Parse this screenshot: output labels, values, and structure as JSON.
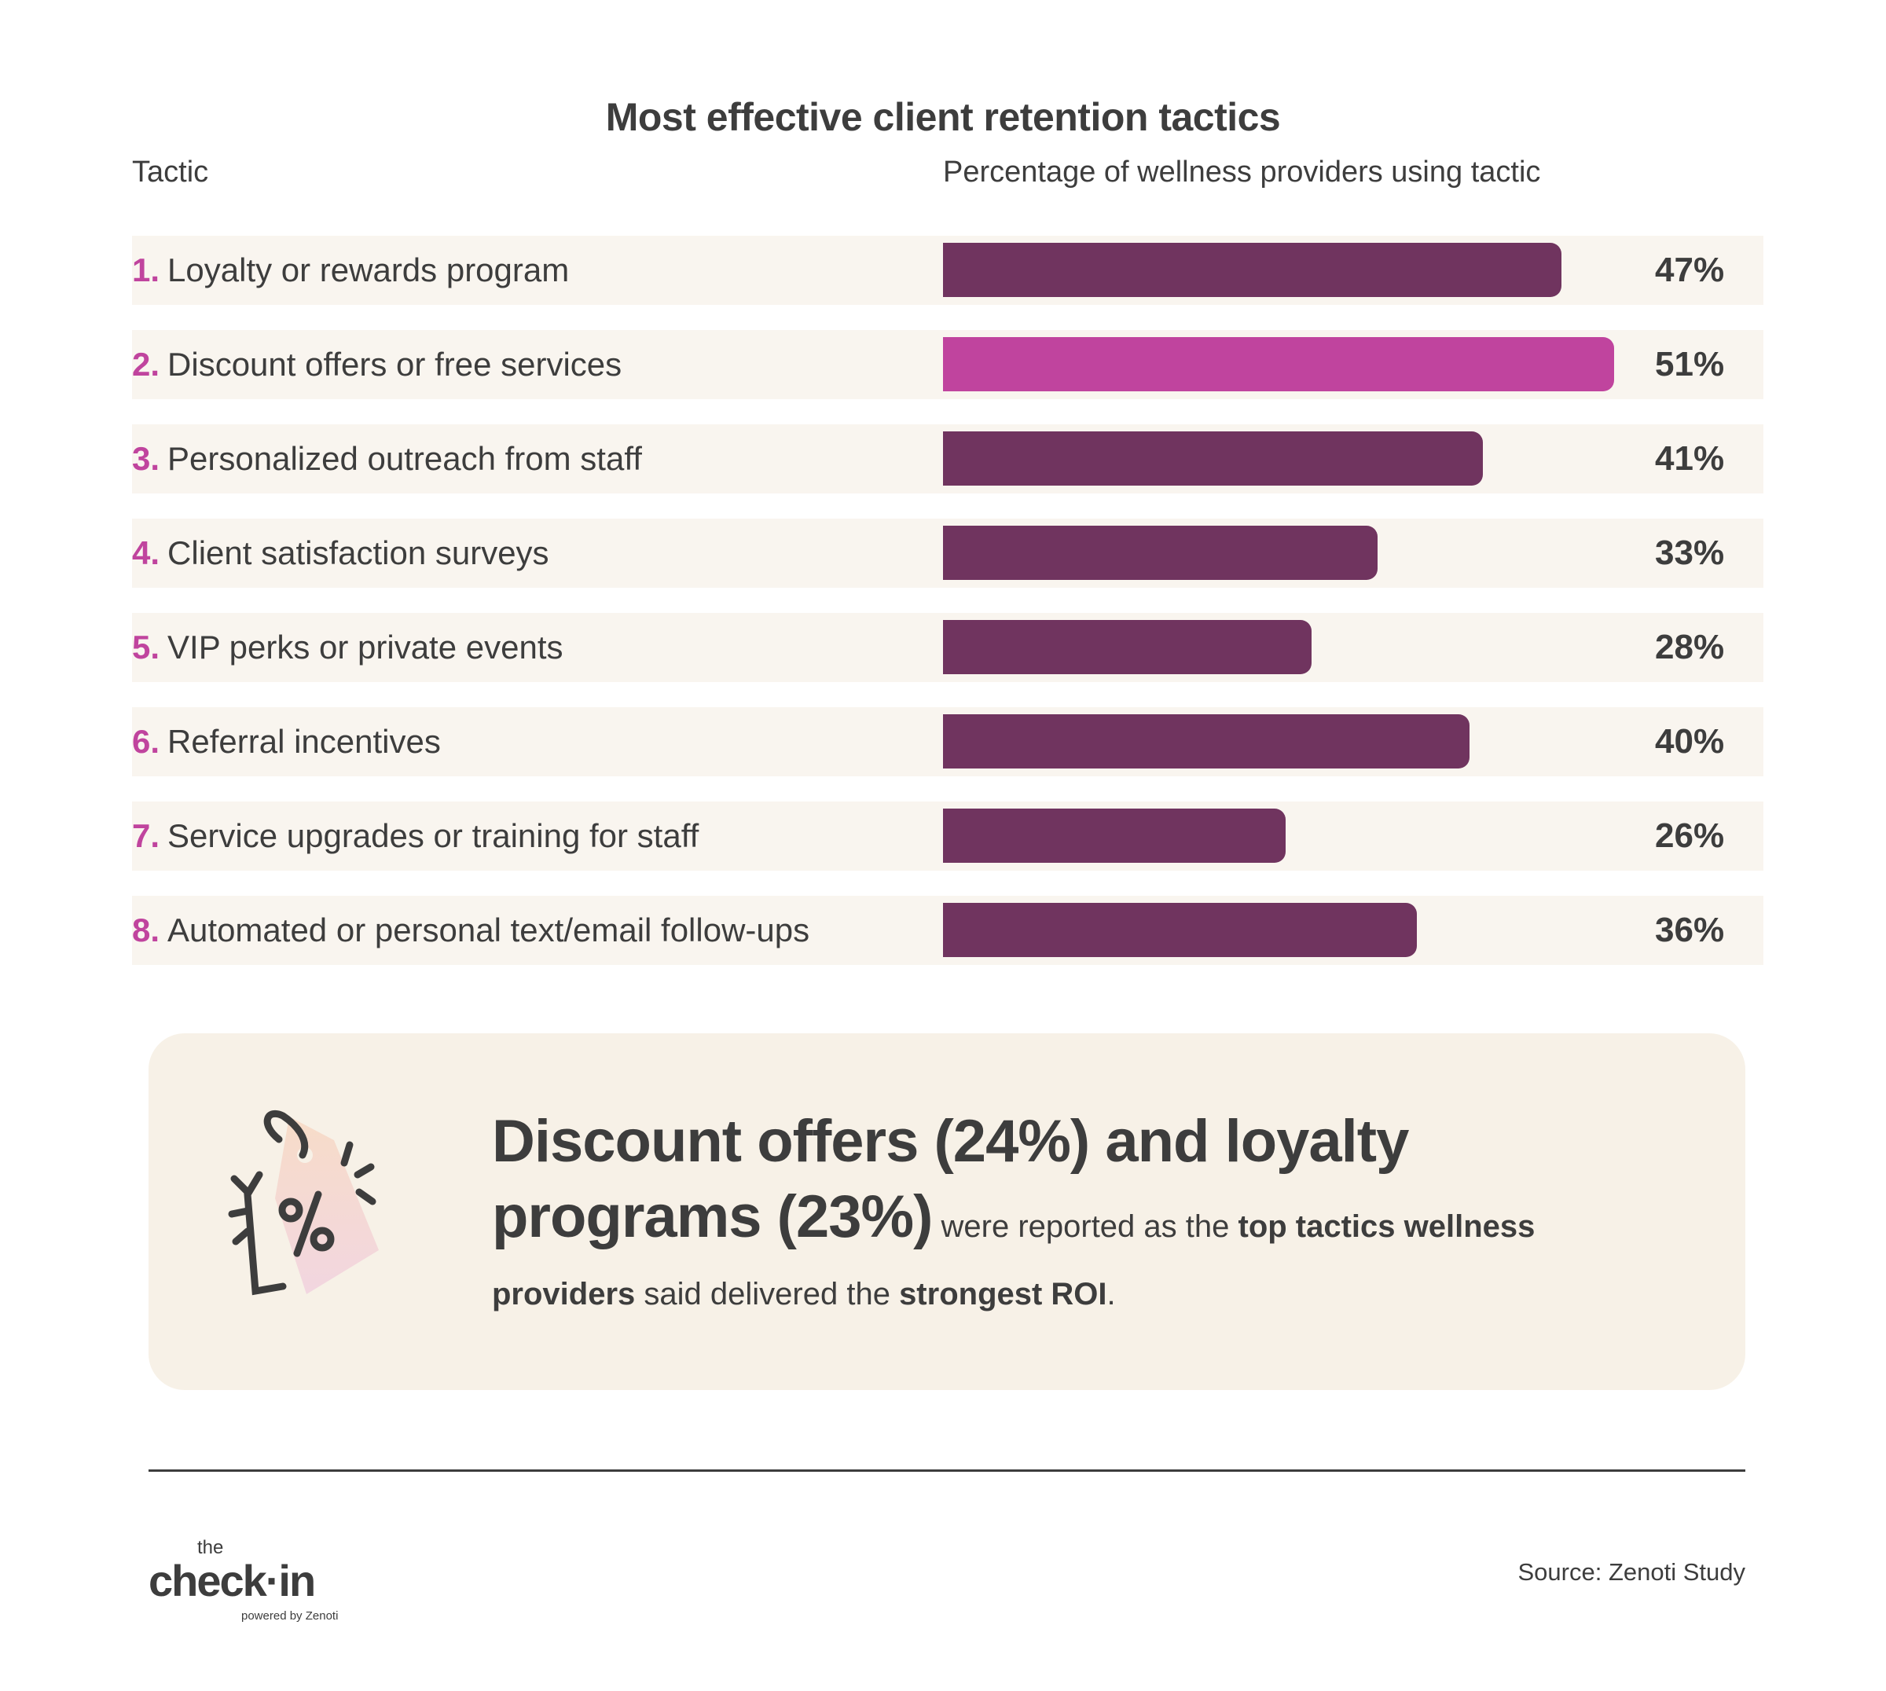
{
  "chart_data": {
    "type": "bar",
    "orientation": "horizontal",
    "title": "Most effective client retention tactics",
    "category_header": "Tactic",
    "value_header": "Percentage of wellness providers using tactic",
    "categories": [
      "Loyalty or rewards program",
      "Discount offers or free services",
      "Personalized outreach from staff",
      "Client satisfaction surveys",
      "VIP perks or private events",
      "Referral incentives",
      "Service upgrades or training for staff",
      "Automated or personal text/email follow-ups"
    ],
    "ranks": [
      "1.",
      "2.",
      "3.",
      "4.",
      "5.",
      "6.",
      "7.",
      "8."
    ],
    "values": [
      47,
      51,
      41,
      33,
      28,
      40,
      26,
      36
    ],
    "value_labels": [
      "47%",
      "51%",
      "41%",
      "33%",
      "28%",
      "40%",
      "26%",
      "36%"
    ],
    "highlight_index": 1,
    "colors": {
      "bar": "#70345f",
      "highlight": "#c0449e",
      "rank": "#c0449e",
      "row_bg": "#f9f5ef"
    }
  },
  "callout": {
    "icon": "discount-tag-icon",
    "headline_1": "Discount offers (24%) and loyalty",
    "headline_2": "programs (23%)",
    "text_1": " were reported as the ",
    "bold_1": "top tactics wellness",
    "bold_2": "providers",
    "text_2": " said delivered the ",
    "bold_3": "strongest ROI",
    "text_3": "."
  },
  "footer": {
    "logo": "the check·in powered by Zenoti",
    "source": "Source: Zenoti Study"
  }
}
